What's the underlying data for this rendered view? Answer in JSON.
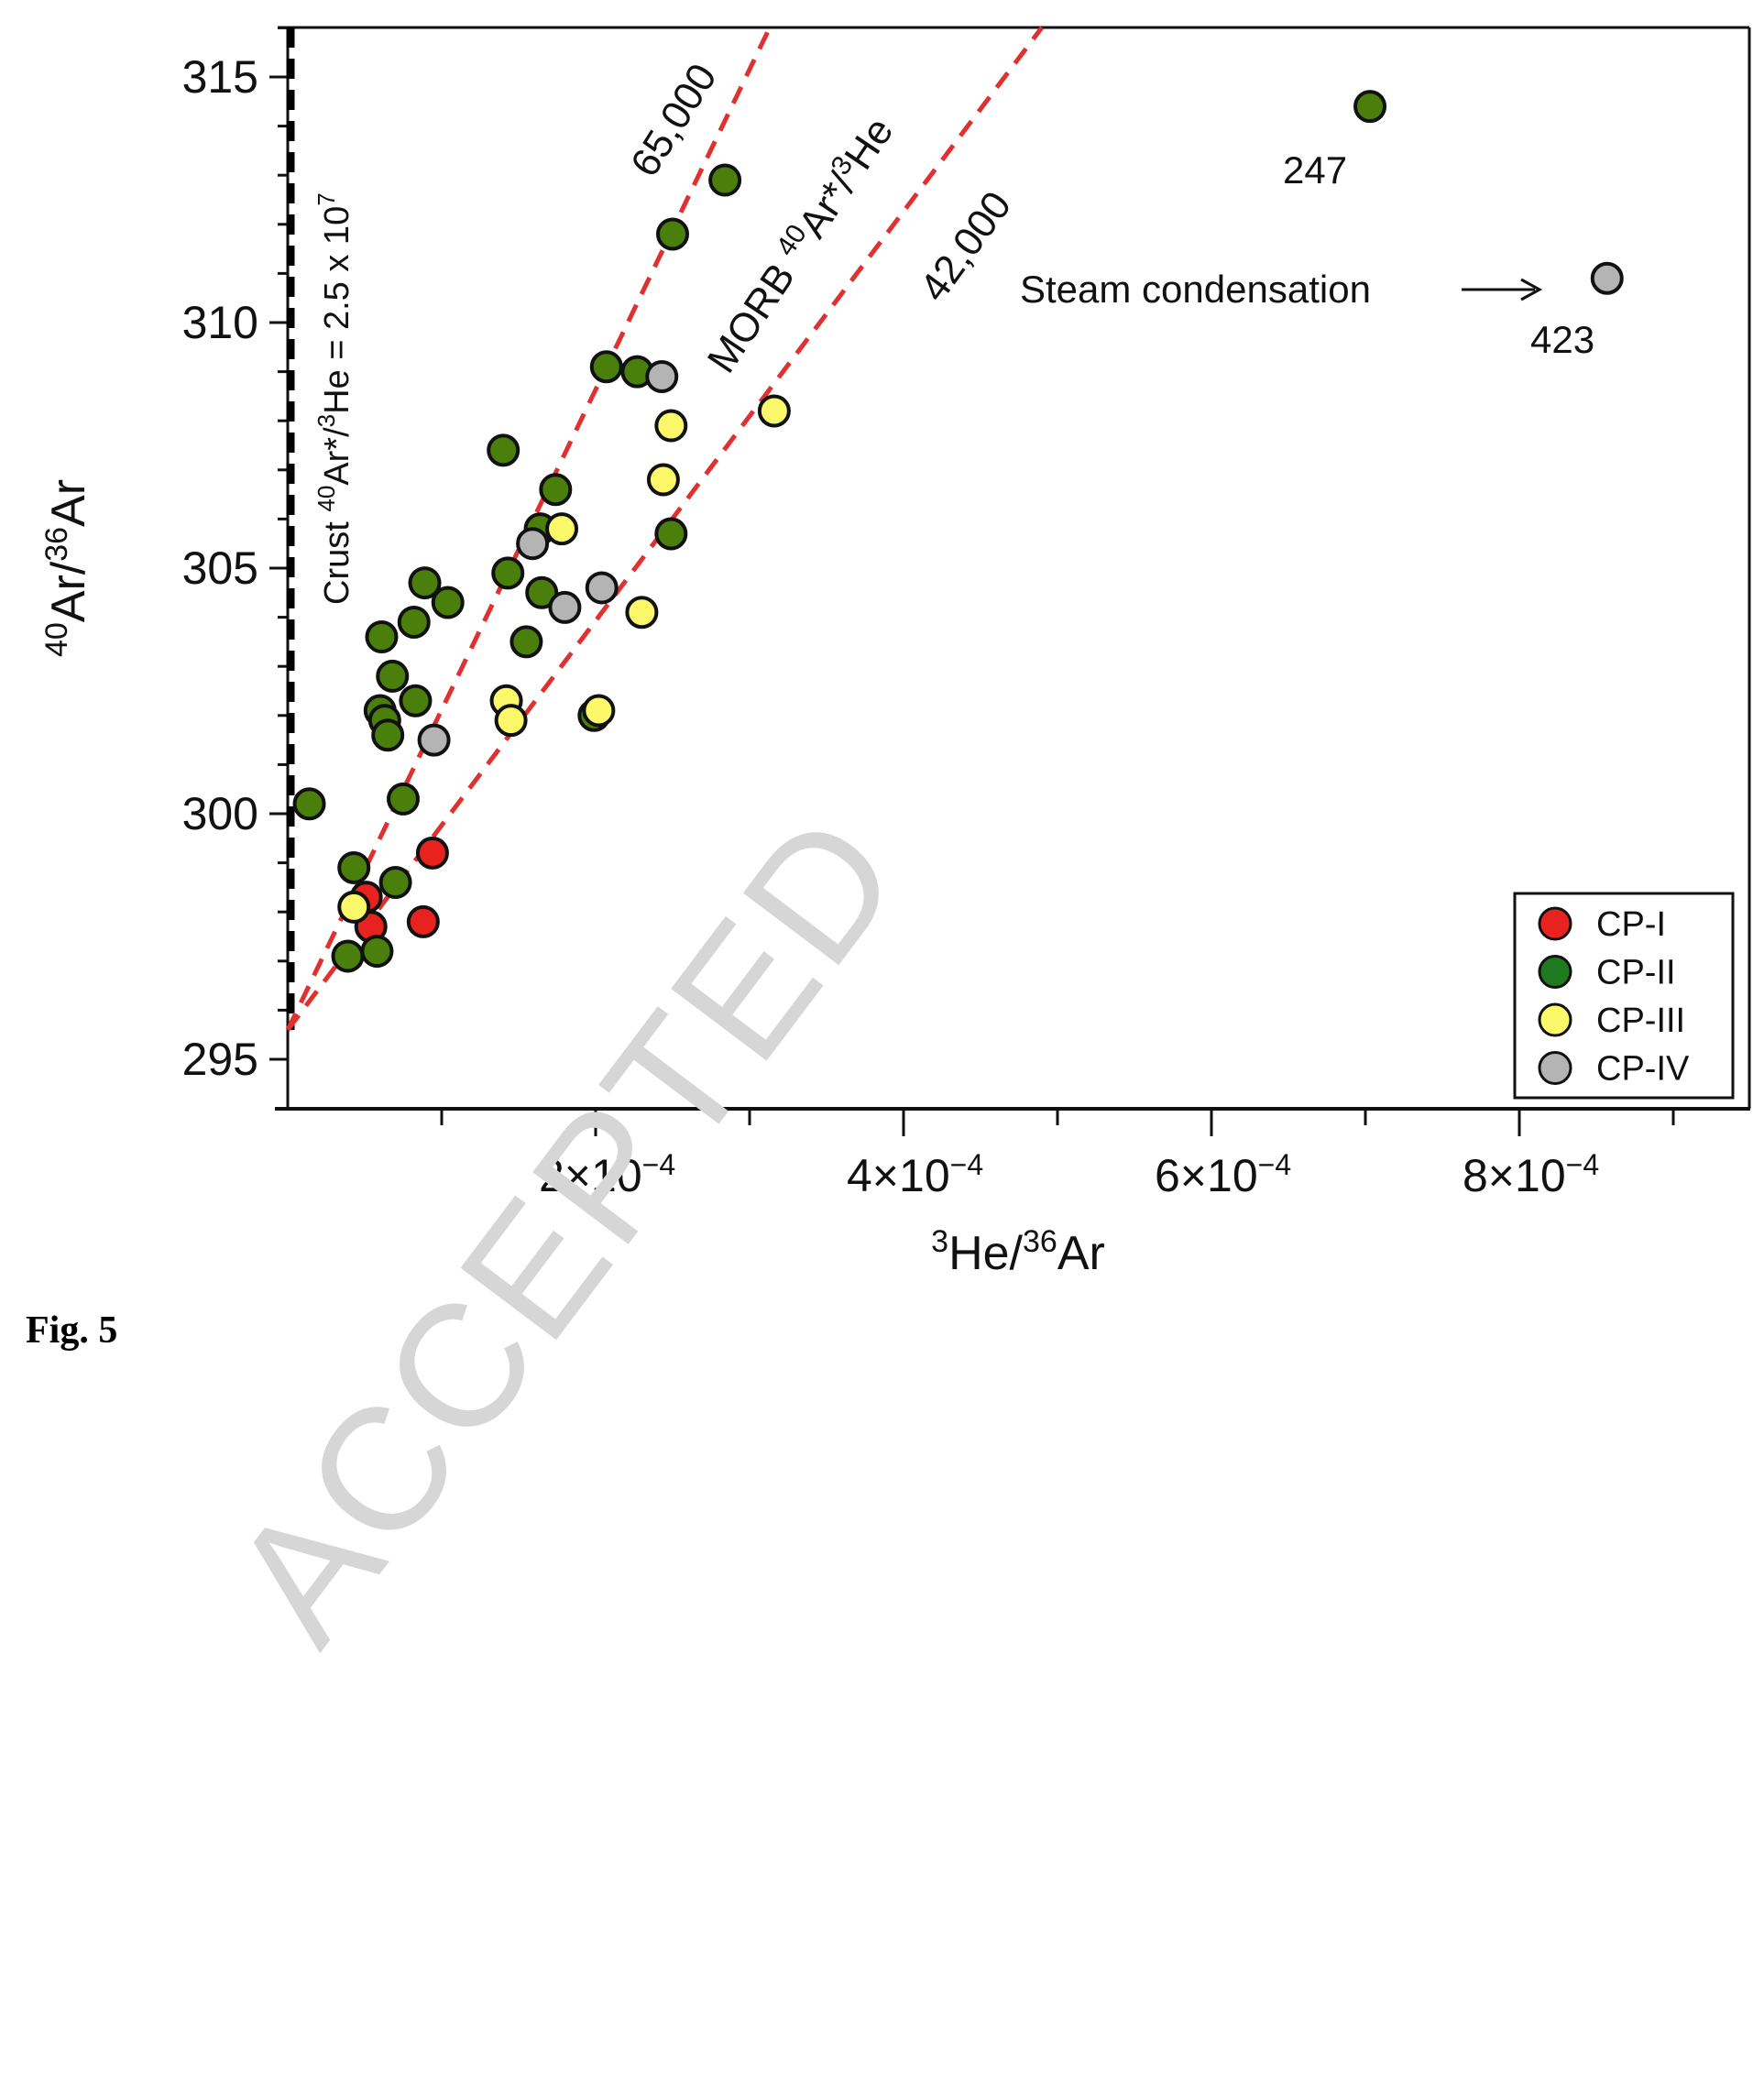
{
  "figure": {
    "caption": "Fig. 5",
    "watermark": "ACCEPTED"
  },
  "chart_data": {
    "type": "scatter",
    "title": "",
    "xlabel": "3He/36Ar",
    "xlabel_parts": {
      "sup1": "3",
      "base1": "He/",
      "sup2": "36",
      "base2": "Ar"
    },
    "ylabel": "40Ar/36Ar",
    "ylabel_parts": {
      "sup1": "40",
      "base1": "Ar/",
      "sup2": "36",
      "base2": "Ar"
    },
    "xlim": [
      0,
      0.000946
    ],
    "ylim": [
      294.0,
      316.0
    ],
    "x_ticks": [
      {
        "value": 0.0001,
        "label": ""
      },
      {
        "value": 0.0002,
        "label_base": "2×10",
        "label_exp": "−4"
      },
      {
        "value": 0.0003,
        "label": ""
      },
      {
        "value": 0.0004,
        "label_base": "4×10",
        "label_exp": "−4"
      },
      {
        "value": 0.0005,
        "label": ""
      },
      {
        "value": 0.0006,
        "label_base": "6×10",
        "label_exp": "−4"
      },
      {
        "value": 0.0007,
        "label": ""
      },
      {
        "value": 0.0008,
        "label_base": "8×10",
        "label_exp": "−4"
      },
      {
        "value": 0.0009,
        "label": ""
      }
    ],
    "y_ticks": [
      {
        "value": 295,
        "label": "295"
      },
      {
        "value": 300,
        "label": "300"
      },
      {
        "value": 305,
        "label": "305"
      },
      {
        "value": 310,
        "label": "310"
      },
      {
        "value": 315,
        "label": "315"
      }
    ],
    "y_minor_step": 1,
    "grid": false,
    "legend_position": "lower right",
    "legend": [
      {
        "label": "CP-I",
        "color": "#e8221e"
      },
      {
        "label": "CP-II",
        "color": "#1f7a1f"
      },
      {
        "label": "CP-III",
        "color": "#fbf86a"
      },
      {
        "label": "CP-IV",
        "color": "#b4b4b4"
      }
    ],
    "reference_lines": [
      {
        "name": "crust",
        "label_prefix": "Crust ",
        "label_sup1": "40",
        "label_mid": "Ar*/",
        "label_sup2": "3",
        "label_end": "He = 2.5 x 10",
        "label_sup3": "7",
        "x": [
          0,
          0
        ],
        "y": [
          295.6,
          316.0
        ],
        "color": "#000000",
        "style": "dashed"
      },
      {
        "name": "morb_65000",
        "label": "65,000",
        "x": [
          0,
          0.000313
        ],
        "y": [
          295.6,
          316.0
        ],
        "color": "#e03030",
        "style": "dashed"
      },
      {
        "name": "morb_42000",
        "label": "42,000",
        "x": [
          0,
          0.00049
        ],
        "y": [
          295.6,
          316.0
        ],
        "color": "#e03030",
        "style": "dashed"
      }
    ],
    "morb_label": {
      "prefix": "MORB ",
      "sup1": "40",
      "mid": "Ar*/",
      "sup2": "3",
      "end": "He"
    },
    "annotations": [
      {
        "text": "247",
        "x": 0.000703,
        "y": 314.4,
        "note": "sample label"
      },
      {
        "text": "423",
        "x": 0.000857,
        "y": 310.9,
        "note": "sample label"
      },
      {
        "text": "Steam condensation",
        "arrow_to": [
          0.000857,
          310.9
        ]
      }
    ],
    "series": [
      {
        "name": "CP-I",
        "color": "#e8221e",
        "points": [
          [
            9.4e-05,
            299.2
          ],
          [
            5.1e-05,
            298.3
          ],
          [
            5.4e-05,
            297.7
          ],
          [
            8.8e-05,
            297.8
          ]
        ]
      },
      {
        "name": "CP-II",
        "color": "#4a7f0c",
        "points": [
          [
            1.4e-05,
            300.2
          ],
          [
            7.5e-05,
            300.3
          ],
          [
            4.3e-05,
            298.9
          ],
          [
            7e-05,
            298.6
          ],
          [
            3.9e-05,
            297.1
          ],
          [
            5.8e-05,
            297.2
          ],
          [
            8.9e-05,
            304.7
          ],
          [
            0.000104,
            304.3
          ],
          [
            8.2e-05,
            303.9
          ],
          [
            6.1e-05,
            303.6
          ],
          [
            6.8e-05,
            302.8
          ],
          [
            8.3e-05,
            302.3
          ],
          [
            6e-05,
            302.1
          ],
          [
            6.3e-05,
            301.9
          ],
          [
            6.5e-05,
            301.6
          ],
          [
            0.000143,
            304.9
          ],
          [
            0.000164,
            305.8
          ],
          [
            0.000165,
            304.5
          ],
          [
            0.000155,
            303.5
          ],
          [
            0.000199,
            302.0
          ],
          [
            0.00014,
            307.4
          ],
          [
            0.000174,
            306.6
          ],
          [
            0.000249,
            305.7
          ],
          [
            0.000207,
            309.1
          ],
          [
            0.000227,
            309.0
          ],
          [
            0.00025,
            311.8
          ],
          [
            0.000284,
            312.9
          ],
          [
            0.000703,
            314.4
          ]
        ]
      },
      {
        "name": "CP-III",
        "color": "#fbf86a",
        "points": [
          [
            4.3e-05,
            298.1
          ],
          [
            0.000142,
            302.3
          ],
          [
            0.000145,
            301.9
          ],
          [
            0.000202,
            302.1
          ],
          [
            0.000178,
            305.8
          ],
          [
            0.00023,
            304.1
          ],
          [
            0.000244,
            306.8
          ],
          [
            0.000249,
            307.9
          ],
          [
            0.000316,
            308.2
          ]
        ]
      },
      {
        "name": "CP-IV",
        "color": "#b4b4b4",
        "points": [
          [
            9.5e-05,
            301.5
          ],
          [
            0.000159,
            305.5
          ],
          [
            0.00018,
            304.2
          ],
          [
            0.000204,
            304.6
          ],
          [
            0.000243,
            308.9
          ],
          [
            0.000857,
            310.9
          ]
        ]
      }
    ]
  }
}
